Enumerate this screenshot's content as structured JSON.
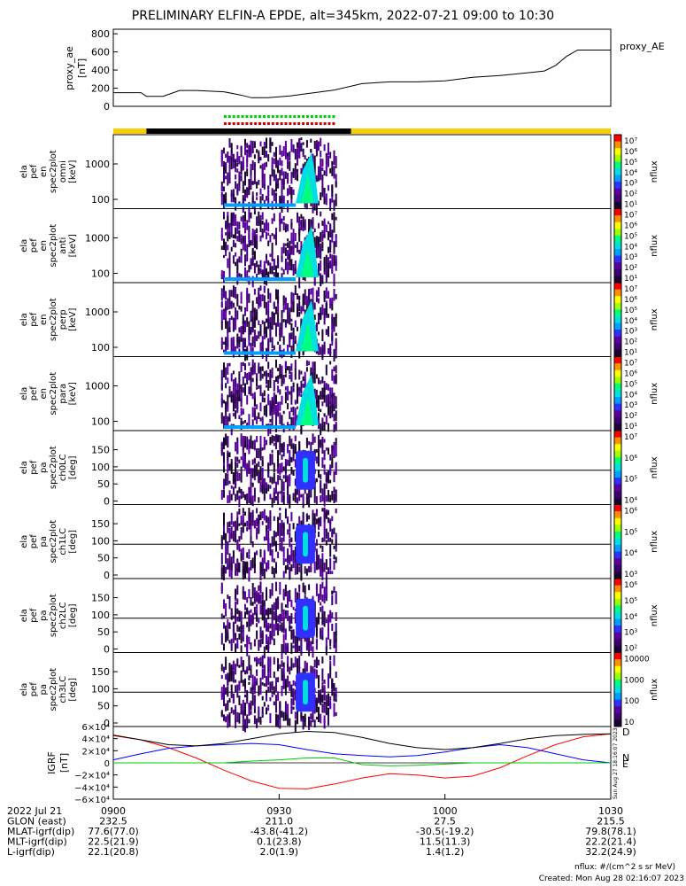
{
  "title": "PRELIMINARY ELFIN-A EPDE, alt=345km, 2022-07-21 09:00 to 10:30",
  "ae_panel": {
    "ylabel_lines": [
      "proxy_ae",
      "[nT]"
    ],
    "legend": "proxy_AE",
    "yticks": [
      "800",
      "600",
      "400",
      "200",
      "0"
    ],
    "ylim": [
      0,
      850
    ],
    "color": "#000000"
  },
  "spec_panels": [
    {
      "ylabel_lines": [
        "ela",
        "pef",
        "en",
        "spec2plot",
        "omni",
        "[keV]"
      ],
      "yticks": [
        "1000",
        "100"
      ],
      "cbar_ticks": [
        "10⁷",
        "10⁶",
        "10⁵",
        "10⁴",
        "10³",
        "10²",
        "10¹"
      ],
      "cbar_label": "nflux"
    },
    {
      "ylabel_lines": [
        "ela",
        "pef",
        "en",
        "spec2plot",
        "anti",
        "[keV]"
      ],
      "yticks": [
        "1000",
        "100"
      ],
      "cbar_ticks": [
        "10⁷",
        "10⁶",
        "10⁵",
        "10⁴",
        "10³",
        "10²",
        "10¹"
      ],
      "cbar_label": "nflux"
    },
    {
      "ylabel_lines": [
        "ela",
        "pef",
        "en",
        "spec2plot",
        "perp",
        "[keV]"
      ],
      "yticks": [
        "1000",
        "100"
      ],
      "cbar_ticks": [
        "10⁷",
        "10⁶",
        "10⁵",
        "10⁴",
        "10³",
        "10²",
        "10¹"
      ],
      "cbar_label": "nflux"
    },
    {
      "ylabel_lines": [
        "ela",
        "pef",
        "en",
        "spec2plot",
        "para",
        "[keV]"
      ],
      "yticks": [
        "1000",
        "100"
      ],
      "cbar_ticks": [
        "10⁷",
        "10⁶",
        "10⁵",
        "10⁴",
        "10³",
        "10²",
        "10¹"
      ],
      "cbar_label": "nflux"
    },
    {
      "ylabel_lines": [
        "ela",
        "pef",
        "pa",
        "spec2plot",
        "ch0LC",
        "[deg]"
      ],
      "yticks": [
        "150",
        "100",
        "50",
        "0"
      ],
      "cbar_ticks": [
        "10⁷",
        "10⁶",
        "10⁵",
        "10⁴"
      ],
      "cbar_label": "nflux"
    },
    {
      "ylabel_lines": [
        "ela",
        "pef",
        "pa",
        "spec2plot",
        "ch1LC",
        "[deg]"
      ],
      "yticks": [
        "150",
        "100",
        "50",
        "0"
      ],
      "cbar_ticks": [
        "10⁶",
        "10⁵",
        "10⁴",
        "10³"
      ],
      "cbar_label": "nflux"
    },
    {
      "ylabel_lines": [
        "ela",
        "pef",
        "pa",
        "spec2plot",
        "ch2LC",
        "[deg]"
      ],
      "yticks": [
        "150",
        "100",
        "50",
        "0"
      ],
      "cbar_ticks": [
        "10⁶",
        "10⁵",
        "10⁴",
        "10³",
        "10²"
      ],
      "cbar_label": "nflux"
    },
    {
      "ylabel_lines": [
        "ela",
        "pef",
        "pa",
        "spec2plot",
        "ch3LC",
        "[deg]"
      ],
      "yticks": [
        "150",
        "100",
        "50",
        "0"
      ],
      "cbar_ticks": [
        "10000",
        "1000",
        "100",
        "10"
      ],
      "cbar_label": "nflux"
    }
  ],
  "igrf_panel": {
    "ylabel_lines": [
      "IGRF",
      "[nT]"
    ],
    "yticks": [
      "6×10⁴",
      "4×10⁴",
      "2×10⁴",
      "0",
      "−2×10⁴",
      "−4×10⁴",
      "−6×10⁴"
    ],
    "ylim": [
      -60000,
      60000
    ],
    "labels": [
      "D",
      "N",
      "E"
    ],
    "colors": {
      "D": "#ff0000",
      "N": "#0000ff",
      "E": "#00cc00",
      "total": "#000000"
    }
  },
  "ephemeris": {
    "rows": [
      {
        "label": "2022 Jul 21",
        "values": [
          "0900",
          "0930",
          "1000",
          "1030"
        ]
      },
      {
        "label": "GLON (east)",
        "values": [
          "232.5",
          "211.0",
          "27.5",
          "215.5"
        ]
      },
      {
        "label": "MLAT-igrf(dip)",
        "values": [
          "77.6(77.0)",
          "-43.8(-41.2)",
          "-30.5(-19.2)",
          "79.8(78.1)"
        ]
      },
      {
        "label": "MLT-igrf(dip)",
        "values": [
          "22.5(21.9)",
          "0.1(23.8)",
          "11.5(11.3)",
          "22.2(21.4)"
        ]
      },
      {
        "label": "L-igrf(dip)",
        "values": [
          "22.1(20.8)",
          "2.0(1.9)",
          "1.4(1.2)",
          "32.2(24.9)"
        ]
      }
    ]
  },
  "footer": {
    "units": "nflux: #/(cm^2 s sr MeV)",
    "created": "Created: Mon Aug 28 02:16:07 2023",
    "side_stamp": "Sun Aug 27 18:16:07 2023"
  },
  "chart_data": {
    "type": "line",
    "title": "PRELIMINARY ELFIN-A EPDE, alt=345km, 2022-07-21 09:00 to 10:30",
    "xlim_minutes": [
      0,
      90
    ],
    "series": [
      {
        "name": "proxy_AE",
        "x": [
          0,
          5,
          6,
          9,
          12,
          15,
          20,
          23,
          25,
          28,
          32,
          40,
          45,
          50,
          55,
          60,
          65,
          70,
          75,
          78,
          80,
          82,
          84,
          86,
          88,
          90
        ],
        "values": [
          150,
          150,
          110,
          110,
          175,
          175,
          160,
          125,
          95,
          95,
          115,
          180,
          250,
          270,
          270,
          280,
          320,
          340,
          370,
          390,
          450,
          550,
          620,
          620,
          620,
          620
        ]
      },
      {
        "name": "D",
        "x": [
          0,
          5,
          10,
          15,
          20,
          25,
          30,
          35,
          40,
          45,
          50,
          55,
          60,
          65,
          70,
          75,
          80,
          85,
          90
        ],
        "values": [
          45000,
          38000,
          25000,
          8000,
          -12000,
          -30000,
          -42000,
          -43000,
          -35000,
          -25000,
          -18000,
          -20000,
          -25000,
          -22000,
          -8000,
          12000,
          30000,
          43000,
          48000
        ]
      },
      {
        "name": "N",
        "x": [
          0,
          5,
          10,
          15,
          20,
          25,
          30,
          35,
          40,
          45,
          50,
          55,
          60,
          65,
          70,
          75,
          80,
          85,
          90
        ],
        "values": [
          5000,
          15000,
          24000,
          28000,
          30000,
          32000,
          30000,
          22000,
          15000,
          12000,
          10000,
          12000,
          18000,
          25000,
          30000,
          25000,
          15000,
          5000,
          0
        ]
      },
      {
        "name": "E",
        "x": [
          0,
          5,
          10,
          15,
          20,
          25,
          30,
          35,
          40,
          45,
          50,
          55,
          60,
          65,
          70,
          75,
          80,
          85,
          90
        ],
        "values": [
          0,
          0,
          0,
          0,
          0,
          3000,
          5000,
          8000,
          8000,
          -3000,
          -5000,
          -4000,
          -2000,
          0,
          0,
          0,
          0,
          0,
          0
        ]
      },
      {
        "name": "total",
        "x": [
          0,
          5,
          10,
          15,
          20,
          25,
          30,
          35,
          40,
          45,
          50,
          55,
          60,
          65,
          70,
          75,
          80,
          85,
          90
        ],
        "values": [
          46000,
          38000,
          30000,
          28000,
          32000,
          40000,
          48000,
          52000,
          50000,
          42000,
          32000,
          25000,
          22000,
          25000,
          32000,
          40000,
          45000,
          47000,
          48000
        ]
      }
    ],
    "spectrogram_activity_minutes": [
      19,
      40
    ]
  }
}
